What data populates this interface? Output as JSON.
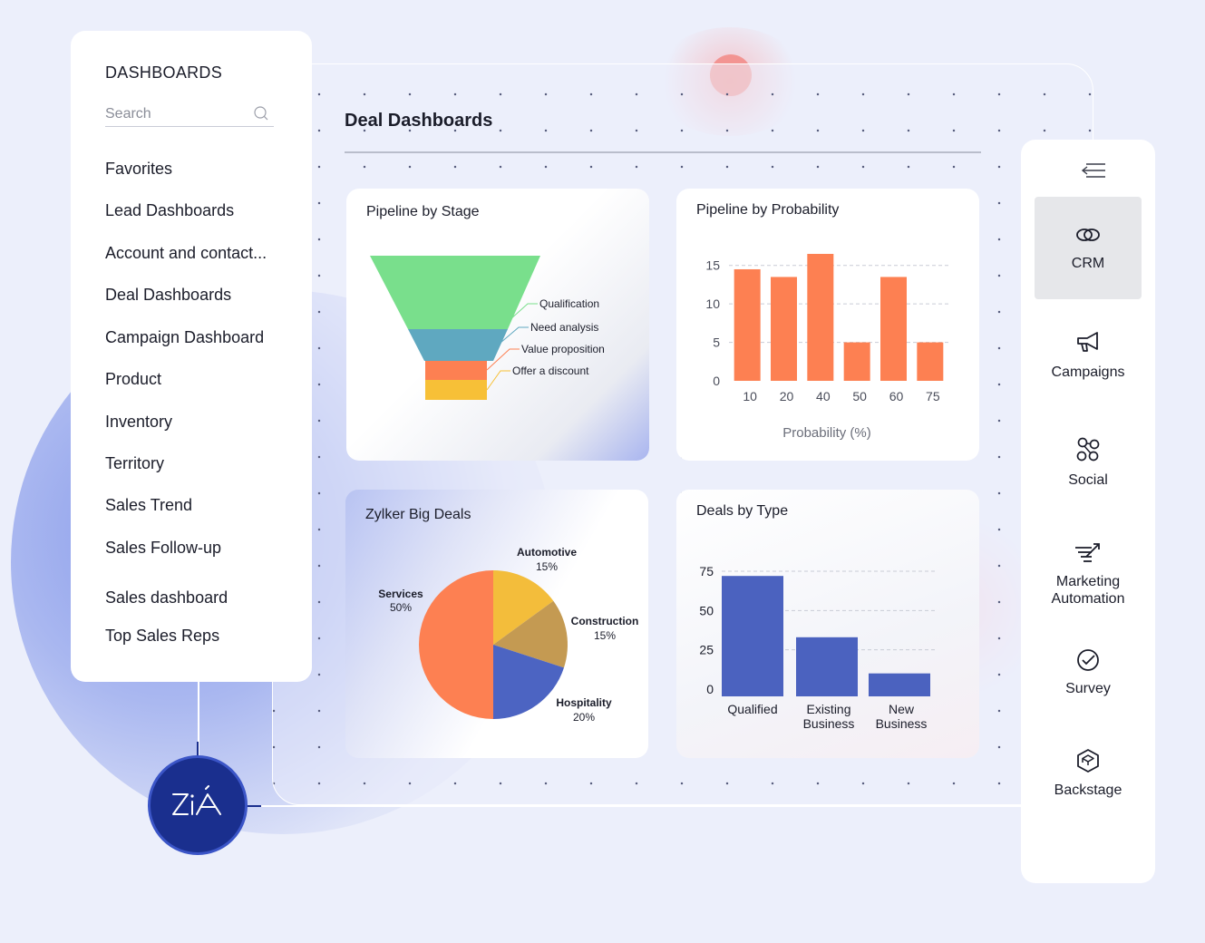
{
  "left_panel": {
    "heading": "DASHBOARDS",
    "search_placeholder": "Search",
    "items": [
      {
        "label": "Favorites"
      },
      {
        "label": "Lead Dashboards"
      },
      {
        "label": "Account and contact..."
      },
      {
        "label": "Deal Dashboards"
      },
      {
        "label": "Campaign Dashboard"
      },
      {
        "label": "Product"
      },
      {
        "label": "Inventory"
      },
      {
        "label": "Territory"
      },
      {
        "label": "Sales Trend"
      },
      {
        "label": "Sales Follow-up"
      },
      {
        "label": "Sales dashboard"
      },
      {
        "label": "Top Sales Reps"
      }
    ]
  },
  "main": {
    "title": "Deal Dashboards"
  },
  "cards": {
    "pipeline_by_stage": {
      "title": "Pipeline by Stage",
      "chart_data": {
        "type": "funnel",
        "stages": [
          {
            "label": "Qualification",
            "color": "#79df8c"
          },
          {
            "label": "Need analysis",
            "color": "#5fa8c0"
          },
          {
            "label": "Value proposition",
            "color": "#fd8052"
          },
          {
            "label": "Offer a discount",
            "color": "#f7c037"
          }
        ]
      }
    },
    "pipeline_by_probability": {
      "title": "Pipeline by Probability",
      "chart_data": {
        "type": "bar",
        "categories": [
          "10",
          "20",
          "40",
          "50",
          "60",
          "75"
        ],
        "values": [
          14.5,
          13.5,
          16.5,
          5,
          13.5,
          5
        ],
        "xlabel": "Probability (%)",
        "ylabel": "",
        "yticks": [
          0,
          5,
          10,
          15
        ],
        "ylim": [
          0,
          16.5
        ],
        "color": "#fd8052",
        "grid": true
      }
    },
    "zylker_big_deals": {
      "title": "Zylker Big Deals",
      "chart_data": {
        "type": "pie",
        "slices": [
          {
            "name": "Automotive",
            "value": 15,
            "label": "15%",
            "color": "#f3bd3b"
          },
          {
            "name": "Construction",
            "value": 15,
            "label": "15%",
            "color": "#c49a52"
          },
          {
            "name": "Hospitality",
            "value": 20,
            "label": "20%",
            "color": "#4c64c2"
          },
          {
            "name": "Services",
            "value": 50,
            "label": "50%",
            "color": "#fd8052"
          }
        ]
      }
    },
    "deals_by_type": {
      "title": "Deals by Type",
      "chart_data": {
        "type": "bar",
        "categories": [
          [
            "Qualified"
          ],
          [
            "Existing",
            "Business"
          ],
          [
            "New",
            "Business"
          ]
        ],
        "values": [
          72,
          33,
          10
        ],
        "yticks": [
          0,
          25,
          50,
          75
        ],
        "ylim": [
          0,
          80
        ],
        "color": "#4b62bf",
        "grid": true
      }
    }
  },
  "right_panel": {
    "items": [
      {
        "label": [
          "CRM"
        ],
        "icon": "link-rings-icon",
        "active": true
      },
      {
        "label": [
          "Campaigns"
        ],
        "icon": "megaphone-icon",
        "active": false
      },
      {
        "label": [
          "Social"
        ],
        "icon": "share-nodes-icon",
        "active": false
      },
      {
        "label": [
          "Marketing",
          "Automation"
        ],
        "icon": "automation-icon",
        "active": false
      },
      {
        "label": [
          "Survey"
        ],
        "icon": "check-circle-icon",
        "active": false
      },
      {
        "label": [
          "Backstage"
        ],
        "icon": "backstage-icon",
        "active": false
      }
    ]
  },
  "colors": {
    "accent_blue": "#1a2f8e",
    "orange": "#fd8052",
    "bar_blue": "#4b62bf"
  }
}
